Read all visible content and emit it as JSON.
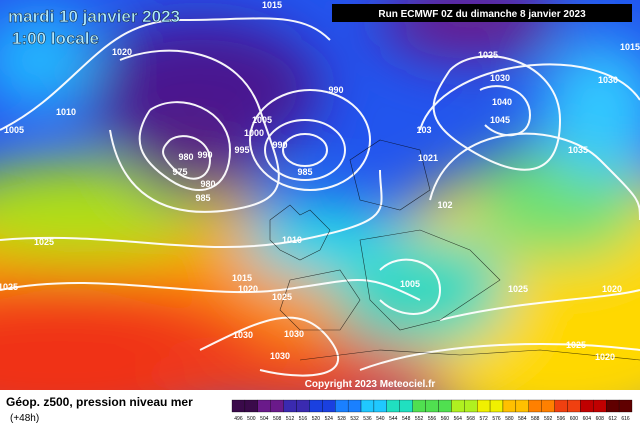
{
  "header": {
    "date": "mardi 10 janvier 2023",
    "time": "1:00 locale",
    "run": "Run ECMWF 0Z du dimanche 8 janvier 2023"
  },
  "isobar_labels": [
    "1015",
    "1010",
    "1020",
    "1005",
    "990",
    "1000",
    "995",
    "990",
    "980",
    "990",
    "975",
    "980",
    "985",
    "985",
    "1005",
    "1025",
    "1025",
    "1010",
    "1015",
    "1020",
    "1025",
    "1030",
    "1030",
    "1030",
    "1005",
    "1025",
    "1030",
    "1040",
    "1045",
    "1035",
    "1030",
    "1025",
    "1020",
    "1025",
    "1020",
    "1015",
    "1021",
    "103",
    "102"
  ],
  "copyright": "Copyright 2023 Meteociel.fr",
  "footer": {
    "title": "Géop. z500, pression niveau mer",
    "subtitle": "(+48h)"
  },
  "scale": [
    496,
    500,
    504,
    508,
    512,
    516,
    520,
    524,
    528,
    532,
    536,
    540,
    544,
    548,
    552,
    556,
    560,
    564,
    568,
    572,
    576,
    580,
    584,
    588,
    592,
    596,
    600,
    604,
    608,
    612,
    616
  ]
}
